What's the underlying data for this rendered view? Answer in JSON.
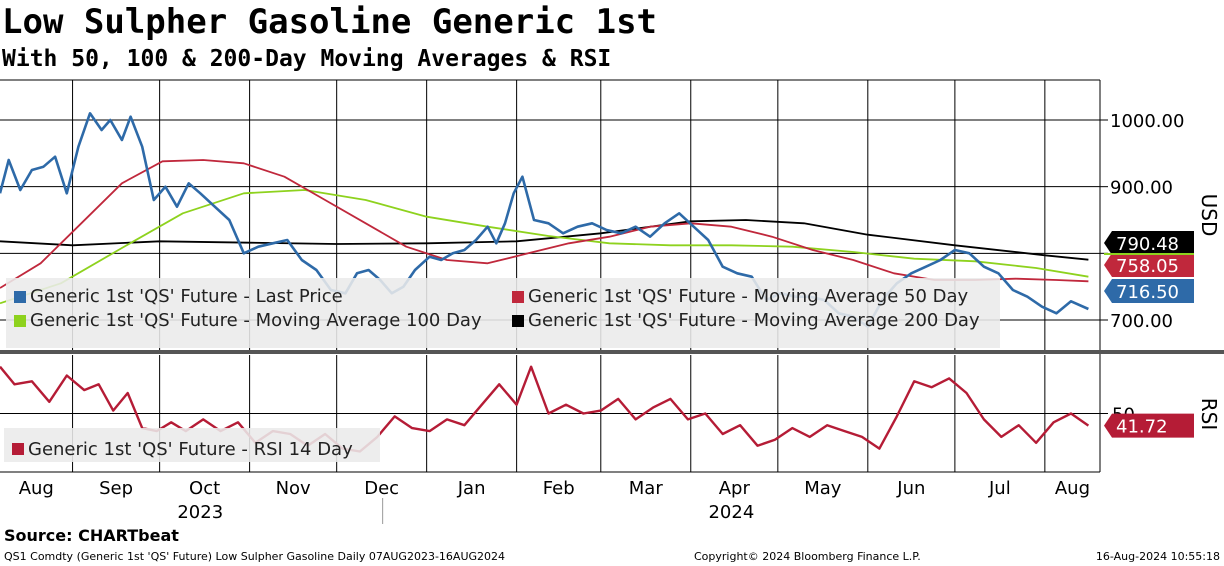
{
  "header": {
    "title": "Low Sulpher Gasoline Generic 1st",
    "subtitle": "With 50, 100 & 200-Day Moving Averages & RSI"
  },
  "footer": {
    "source": "Source: CHARTbeat",
    "left": "QS1 Comdty (Generic 1st 'QS' Future) Low Sulpher Gasoline  Daily 07AUG2023-16AUG2024",
    "center": "Copyright© 2024 Bloomberg Finance L.P.",
    "right": "16-Aug-2024 10:55:18"
  },
  "colors": {
    "price": "#2e6aa8",
    "ma50": "#c0283c",
    "ma100": "#8ed21e",
    "ma200": "#000000",
    "rsi": "#b51c36",
    "rsi_faded": "#d98a98"
  },
  "chart_data": [
    {
      "type": "line",
      "ylabel": "USD",
      "ylim": [
        655,
        1060
      ],
      "yticks": [
        {
          "value": 1000,
          "label": "1000.00"
        },
        {
          "value": 900,
          "label": "900.00"
        },
        {
          "value": 800,
          "label": "800.00"
        },
        {
          "value": 700,
          "label": "700.00"
        }
      ],
      "xlim": [
        "2023-08-07",
        "2024-08-20"
      ],
      "month_ticks": [
        {
          "label": "Aug",
          "date": "2023-08-01"
        },
        {
          "label": "Sep",
          "date": "2023-09-01"
        },
        {
          "label": "Oct",
          "date": "2023-10-01"
        },
        {
          "label": "Nov",
          "date": "2023-11-01"
        },
        {
          "label": "Dec",
          "date": "2023-12-01"
        },
        {
          "label": "Jan",
          "date": "2024-01-01"
        },
        {
          "label": "Feb",
          "date": "2024-02-01"
        },
        {
          "label": "Mar",
          "date": "2024-03-01"
        },
        {
          "label": "Apr",
          "date": "2024-04-01"
        },
        {
          "label": "May",
          "date": "2024-05-01"
        },
        {
          "label": "Jun",
          "date": "2024-06-01"
        },
        {
          "label": "Jul",
          "date": "2024-07-01"
        },
        {
          "label": "Aug",
          "date": "2024-08-01"
        }
      ],
      "years": [
        {
          "label": "2023",
          "date": "2023-10-15"
        },
        {
          "label": "2024",
          "date": "2024-04-15"
        }
      ],
      "legend": [
        {
          "label": "Generic 1st 'QS' Future - Last Price",
          "color": "#2e6aa8"
        },
        {
          "label": "Generic 1st 'QS' Future - Moving Average 50 Day",
          "color": "#c0283c"
        },
        {
          "label": "Generic 1st 'QS' Future - Moving Average 100 Day",
          "color": "#8ed21e"
        },
        {
          "label": "Generic 1st 'QS' Future - Moving Average 200 Day",
          "color": "#000000"
        }
      ],
      "last_values": [
        {
          "label": "790.48",
          "value": 790.48,
          "color": "#000000"
        },
        {
          "label": "758.05",
          "value": 758.05,
          "color": "#c0283c"
        },
        {
          "label": "716.50",
          "value": 716.5,
          "color": "#2e6aa8"
        }
      ],
      "series": [
        {
          "key": "price",
          "x": [
            "2023-08-07",
            "2023-08-10",
            "2023-08-14",
            "2023-08-18",
            "2023-08-22",
            "2023-08-26",
            "2023-08-30",
            "2023-09-03",
            "2023-09-07",
            "2023-09-11",
            "2023-09-14",
            "2023-09-18",
            "2023-09-21",
            "2023-09-25",
            "2023-09-29",
            "2023-10-03",
            "2023-10-07",
            "2023-10-11",
            "2023-10-15",
            "2023-10-20",
            "2023-10-25",
            "2023-10-30",
            "2023-11-04",
            "2023-11-09",
            "2023-11-14",
            "2023-11-19",
            "2023-11-24",
            "2023-11-29",
            "2023-12-04",
            "2023-12-08",
            "2023-12-12",
            "2023-12-16",
            "2023-12-20",
            "2023-12-24",
            "2023-12-28",
            "2024-01-02",
            "2024-01-06",
            "2024-01-10",
            "2024-01-14",
            "2024-01-18",
            "2024-01-22",
            "2024-01-25",
            "2024-01-28",
            "2024-01-31",
            "2024-02-03",
            "2024-02-07",
            "2024-02-12",
            "2024-02-17",
            "2024-02-22",
            "2024-02-27",
            "2024-03-03",
            "2024-03-08",
            "2024-03-13",
            "2024-03-18",
            "2024-03-23",
            "2024-03-28",
            "2024-04-02",
            "2024-04-07",
            "2024-04-12",
            "2024-04-17",
            "2024-04-22",
            "2024-04-27",
            "2024-05-02",
            "2024-05-07",
            "2024-05-12",
            "2024-05-17",
            "2024-05-22",
            "2024-05-27",
            "2024-06-01",
            "2024-06-06",
            "2024-06-11",
            "2024-06-16",
            "2024-06-21",
            "2024-06-26",
            "2024-07-01",
            "2024-07-06",
            "2024-07-11",
            "2024-07-16",
            "2024-07-21",
            "2024-07-26",
            "2024-07-31",
            "2024-08-05",
            "2024-08-10",
            "2024-08-16"
          ],
          "y": [
            890,
            940,
            895,
            925,
            930,
            945,
            890,
            960,
            1010,
            985,
            1000,
            970,
            1005,
            960,
            880,
            900,
            870,
            905,
            890,
            870,
            850,
            800,
            810,
            815,
            820,
            790,
            775,
            745,
            740,
            770,
            775,
            760,
            740,
            750,
            775,
            795,
            790,
            800,
            805,
            820,
            840,
            815,
            845,
            890,
            915,
            850,
            845,
            830,
            840,
            845,
            835,
            830,
            840,
            825,
            845,
            860,
            840,
            820,
            780,
            770,
            765,
            730,
            740,
            735,
            735,
            730,
            710,
            705,
            690,
            730,
            755,
            770,
            780,
            790,
            805,
            800,
            780,
            770,
            745,
            735,
            720,
            710,
            728,
            716.5
          ]
        },
        {
          "key": "ma50",
          "x": [
            "2023-08-07",
            "2023-08-21",
            "2023-09-04",
            "2023-09-18",
            "2023-10-02",
            "2023-10-16",
            "2023-10-30",
            "2023-11-13",
            "2023-11-27",
            "2023-12-11",
            "2023-12-25",
            "2024-01-08",
            "2024-01-22",
            "2024-02-05",
            "2024-02-19",
            "2024-03-04",
            "2024-03-18",
            "2024-04-01",
            "2024-04-15",
            "2024-04-29",
            "2024-05-13",
            "2024-05-27",
            "2024-06-10",
            "2024-06-24",
            "2024-07-08",
            "2024-07-22",
            "2024-08-05",
            "2024-08-16"
          ],
          "y": [
            748,
            785,
            845,
            905,
            938,
            940,
            935,
            915,
            880,
            845,
            810,
            790,
            785,
            800,
            815,
            825,
            840,
            845,
            840,
            825,
            805,
            790,
            770,
            760,
            760,
            762,
            760,
            758.05
          ]
        },
        {
          "key": "ma100",
          "x": [
            "2023-08-07",
            "2023-08-28",
            "2023-09-18",
            "2023-10-09",
            "2023-10-30",
            "2023-11-20",
            "2023-12-11",
            "2024-01-01",
            "2024-01-22",
            "2024-02-12",
            "2024-03-04",
            "2024-03-25",
            "2024-04-15",
            "2024-05-06",
            "2024-05-27",
            "2024-06-17",
            "2024-07-08",
            "2024-07-29",
            "2024-08-16"
          ],
          "y": [
            725,
            755,
            808,
            860,
            890,
            895,
            880,
            855,
            840,
            826,
            815,
            812,
            812,
            810,
            802,
            792,
            788,
            778,
            765
          ]
        },
        {
          "key": "ma200",
          "x": [
            "2023-08-07",
            "2023-09-01",
            "2023-10-01",
            "2023-11-01",
            "2023-12-01",
            "2024-01-01",
            "2024-02-01",
            "2024-03-01",
            "2024-04-01",
            "2024-04-20",
            "2024-05-10",
            "2024-06-01",
            "2024-07-01",
            "2024-08-01",
            "2024-08-16"
          ],
          "y": [
            818,
            812,
            818,
            816,
            814,
            815,
            818,
            830,
            848,
            850,
            845,
            828,
            812,
            797,
            790.48
          ]
        }
      ]
    },
    {
      "type": "line",
      "ylabel": "RSI",
      "ylim": [
        10,
        90
      ],
      "yticks": [
        {
          "value": 50,
          "label": "50"
        }
      ],
      "legend": [
        {
          "label": "Generic 1st 'QS' Future - RSI 14 Day",
          "color": "#b51c36"
        }
      ],
      "last_values": [
        {
          "label": "41.72",
          "value": 41.72,
          "color": "#b51c36"
        }
      ],
      "series": [
        {
          "key": "rsi",
          "x": [
            "2023-08-07",
            "2023-08-12",
            "2023-08-18",
            "2023-08-24",
            "2023-08-30",
            "2023-09-05",
            "2023-09-10",
            "2023-09-15",
            "2023-09-20",
            "2023-09-25",
            "2023-09-30",
            "2023-10-05",
            "2023-10-10",
            "2023-10-16",
            "2023-10-22",
            "2023-10-28",
            "2023-11-03",
            "2023-11-09",
            "2023-11-15",
            "2023-11-21",
            "2023-11-27",
            "2023-12-03",
            "2023-12-09",
            "2023-12-15",
            "2023-12-21",
            "2023-12-27",
            "2024-01-02",
            "2024-01-08",
            "2024-01-14",
            "2024-01-20",
            "2024-01-26",
            "2024-02-01",
            "2024-02-06",
            "2024-02-12",
            "2024-02-18",
            "2024-02-24",
            "2024-03-01",
            "2024-03-07",
            "2024-03-13",
            "2024-03-19",
            "2024-03-25",
            "2024-03-31",
            "2024-04-06",
            "2024-04-12",
            "2024-04-18",
            "2024-04-24",
            "2024-04-30",
            "2024-05-06",
            "2024-05-12",
            "2024-05-18",
            "2024-05-24",
            "2024-05-30",
            "2024-06-05",
            "2024-06-11",
            "2024-06-17",
            "2024-06-23",
            "2024-06-29",
            "2024-07-05",
            "2024-07-11",
            "2024-07-17",
            "2024-07-23",
            "2024-07-29",
            "2024-08-04",
            "2024-08-10",
            "2024-08-16"
          ],
          "y": [
            82,
            70,
            72,
            58,
            76,
            66,
            70,
            52,
            64,
            40,
            38,
            44,
            38,
            46,
            38,
            44,
            30,
            38,
            36,
            28,
            36,
            26,
            24,
            34,
            48,
            40,
            38,
            46,
            42,
            56,
            70,
            56,
            82,
            50,
            56,
            50,
            52,
            60,
            46,
            54,
            60,
            46,
            50,
            36,
            42,
            28,
            32,
            40,
            34,
            42,
            38,
            34,
            26,
            48,
            72,
            68,
            74,
            64,
            46,
            34,
            42,
            30,
            44,
            50,
            41.72
          ]
        }
      ]
    }
  ]
}
